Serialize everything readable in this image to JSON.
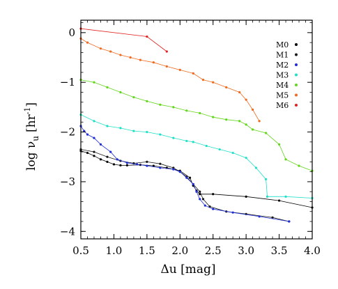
{
  "chart_data": {
    "type": "line",
    "xlabel": "Δu [mag]",
    "ylabel_main": "log ν",
    "ylabel_sub": "u",
    "ylabel_unit_pre": "[hr",
    "ylabel_unit_sup": "-1",
    "ylabel_unit_post": "]",
    "xlim": [
      0.5,
      4.0
    ],
    "ylim": [
      -4.15,
      0.25
    ],
    "xticks": [
      0.5,
      1.0,
      1.5,
      2.0,
      2.5,
      3.0,
      3.5,
      4.0
    ],
    "xtick_labels": [
      "0.5",
      "1.0",
      "1.5",
      "2.0",
      "2.5",
      "3.0",
      "3.5",
      "4.0"
    ],
    "yticks": [
      0,
      -1,
      -2,
      -3,
      -4
    ],
    "ytick_labels": [
      "0",
      "−1",
      "−2",
      "−3",
      "−4"
    ],
    "legend_position": "top-right",
    "grid": false,
    "series": [
      {
        "name": "M0",
        "color": "#000000",
        "points": [
          [
            0.5,
            -2.38
          ],
          [
            0.6,
            -2.42
          ],
          [
            0.7,
            -2.48
          ],
          [
            0.8,
            -2.55
          ],
          [
            0.9,
            -2.6
          ],
          [
            1.0,
            -2.65
          ],
          [
            1.1,
            -2.67
          ],
          [
            1.2,
            -2.67
          ],
          [
            1.4,
            -2.66
          ],
          [
            1.6,
            -2.68
          ],
          [
            1.8,
            -2.72
          ],
          [
            2.0,
            -2.78
          ],
          [
            2.15,
            -2.92
          ],
          [
            2.2,
            -3.08
          ],
          [
            2.25,
            -3.18
          ],
          [
            2.3,
            -3.25
          ],
          [
            2.5,
            -3.25
          ],
          [
            3.0,
            -3.3
          ],
          [
            3.5,
            -3.38
          ],
          [
            4.0,
            -3.52
          ]
        ]
      },
      {
        "name": "M1",
        "color": "#1a1a1a",
        "points": [
          [
            0.5,
            -2.35
          ],
          [
            0.7,
            -2.4
          ],
          [
            0.9,
            -2.5
          ],
          [
            1.1,
            -2.58
          ],
          [
            1.3,
            -2.63
          ],
          [
            1.5,
            -2.6
          ],
          [
            1.7,
            -2.64
          ],
          [
            1.9,
            -2.72
          ],
          [
            2.0,
            -2.8
          ],
          [
            2.1,
            -2.9
          ],
          [
            2.2,
            -3.05
          ],
          [
            2.3,
            -3.2
          ],
          [
            2.35,
            -3.35
          ],
          [
            2.45,
            -3.5
          ],
          [
            2.7,
            -3.6
          ],
          [
            3.0,
            -3.65
          ],
          [
            3.4,
            -3.72
          ],
          [
            3.65,
            -3.8
          ]
        ]
      },
      {
        "name": "M2",
        "color": "#1f2ed8",
        "points": [
          [
            0.5,
            -1.88
          ],
          [
            0.55,
            -1.98
          ],
          [
            0.6,
            -2.05
          ],
          [
            0.7,
            -2.12
          ],
          [
            0.8,
            -2.25
          ],
          [
            0.95,
            -2.4
          ],
          [
            1.05,
            -2.55
          ],
          [
            1.2,
            -2.62
          ],
          [
            1.35,
            -2.65
          ],
          [
            1.5,
            -2.68
          ],
          [
            1.7,
            -2.72
          ],
          [
            1.9,
            -2.75
          ],
          [
            2.0,
            -2.8
          ],
          [
            2.1,
            -2.92
          ],
          [
            2.2,
            -3.05
          ],
          [
            2.25,
            -3.2
          ],
          [
            2.3,
            -3.35
          ],
          [
            2.38,
            -3.48
          ],
          [
            2.5,
            -3.55
          ],
          [
            2.8,
            -3.62
          ],
          [
            3.2,
            -3.7
          ],
          [
            3.65,
            -3.8
          ]
        ]
      },
      {
        "name": "M3",
        "color": "#1ee0c8",
        "points": [
          [
            0.5,
            -1.65
          ],
          [
            0.7,
            -1.78
          ],
          [
            0.9,
            -1.88
          ],
          [
            1.1,
            -1.92
          ],
          [
            1.3,
            -1.98
          ],
          [
            1.5,
            -2.0
          ],
          [
            1.7,
            -2.05
          ],
          [
            1.9,
            -2.12
          ],
          [
            2.1,
            -2.18
          ],
          [
            2.2,
            -2.2
          ],
          [
            2.4,
            -2.28
          ],
          [
            2.6,
            -2.35
          ],
          [
            2.8,
            -2.42
          ],
          [
            3.0,
            -2.52
          ],
          [
            3.15,
            -2.72
          ],
          [
            3.3,
            -2.95
          ],
          [
            3.32,
            -3.3
          ],
          [
            3.6,
            -3.3
          ],
          [
            4.0,
            -3.33
          ]
        ]
      },
      {
        "name": "M4",
        "color": "#62d61a",
        "points": [
          [
            0.5,
            -0.95
          ],
          [
            0.7,
            -1.0
          ],
          [
            0.9,
            -1.1
          ],
          [
            1.1,
            -1.2
          ],
          [
            1.3,
            -1.3
          ],
          [
            1.5,
            -1.38
          ],
          [
            1.7,
            -1.45
          ],
          [
            1.9,
            -1.5
          ],
          [
            2.1,
            -1.57
          ],
          [
            2.3,
            -1.62
          ],
          [
            2.5,
            -1.7
          ],
          [
            2.7,
            -1.75
          ],
          [
            2.9,
            -1.78
          ],
          [
            3.0,
            -1.85
          ],
          [
            3.1,
            -1.95
          ],
          [
            3.3,
            -2.02
          ],
          [
            3.5,
            -2.25
          ],
          [
            3.6,
            -2.55
          ],
          [
            3.8,
            -2.68
          ],
          [
            4.0,
            -2.78
          ]
        ]
      },
      {
        "name": "M5",
        "color": "#f06a1e",
        "points": [
          [
            0.5,
            -0.12
          ],
          [
            0.6,
            -0.2
          ],
          [
            0.8,
            -0.32
          ],
          [
            0.95,
            -0.38
          ],
          [
            1.1,
            -0.45
          ],
          [
            1.25,
            -0.5
          ],
          [
            1.4,
            -0.55
          ],
          [
            1.6,
            -0.6
          ],
          [
            1.8,
            -0.68
          ],
          [
            2.0,
            -0.75
          ],
          [
            2.2,
            -0.82
          ],
          [
            2.35,
            -0.95
          ],
          [
            2.5,
            -1.0
          ],
          [
            2.7,
            -1.1
          ],
          [
            2.9,
            -1.2
          ],
          [
            3.0,
            -1.35
          ],
          [
            3.1,
            -1.55
          ],
          [
            3.2,
            -1.78
          ]
        ]
      },
      {
        "name": "M6",
        "color": "#e11f1f",
        "points": [
          [
            0.5,
            0.08
          ],
          [
            1.5,
            -0.08
          ],
          [
            1.8,
            -0.38
          ]
        ]
      }
    ]
  }
}
